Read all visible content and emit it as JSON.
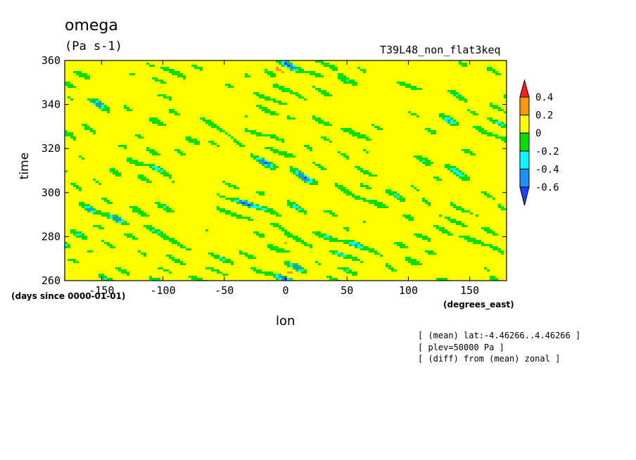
{
  "chart_data": {
    "type": "heatmap",
    "title": "omega",
    "units": "(Pa s-1)",
    "run_name": "T39L48_non_flat3keq",
    "xlabel": "lon",
    "ylabel": "time",
    "x_units": "(degrees_east)",
    "y_units": "(days since 0000-01-01)",
    "xlim": [
      -180,
      180
    ],
    "ylim": [
      260,
      360
    ],
    "x_ticks": [
      -150,
      -100,
      -50,
      0,
      50,
      100,
      150
    ],
    "x_tick_labels": [
      "-150",
      "-100",
      "-50",
      "0",
      "50",
      "100",
      "150"
    ],
    "y_ticks": [
      260,
      280,
      300,
      320,
      340,
      360
    ],
    "y_tick_labels": [
      "260",
      "280",
      "300",
      "320",
      "340",
      "360"
    ],
    "colorbar": {
      "levels": [
        0.4,
        0.2,
        0,
        -0.2,
        -0.4,
        -0.6
      ],
      "level_labels": [
        "0.4",
        "0.2",
        "0",
        "-0.2",
        "-0.4",
        "-0.6"
      ],
      "colors": [
        "#ff2020",
        "#ff9900",
        "#ffff00",
        "#00e000",
        "#00ffff",
        "#1e90ff",
        "#2040ff"
      ]
    },
    "notes": [
      "[ (mean) lat:-4.46266..4.46266 ]",
      "[ plev=50000 Pa ]",
      "[ (diff) from (mean) zonal ]"
    ]
  }
}
